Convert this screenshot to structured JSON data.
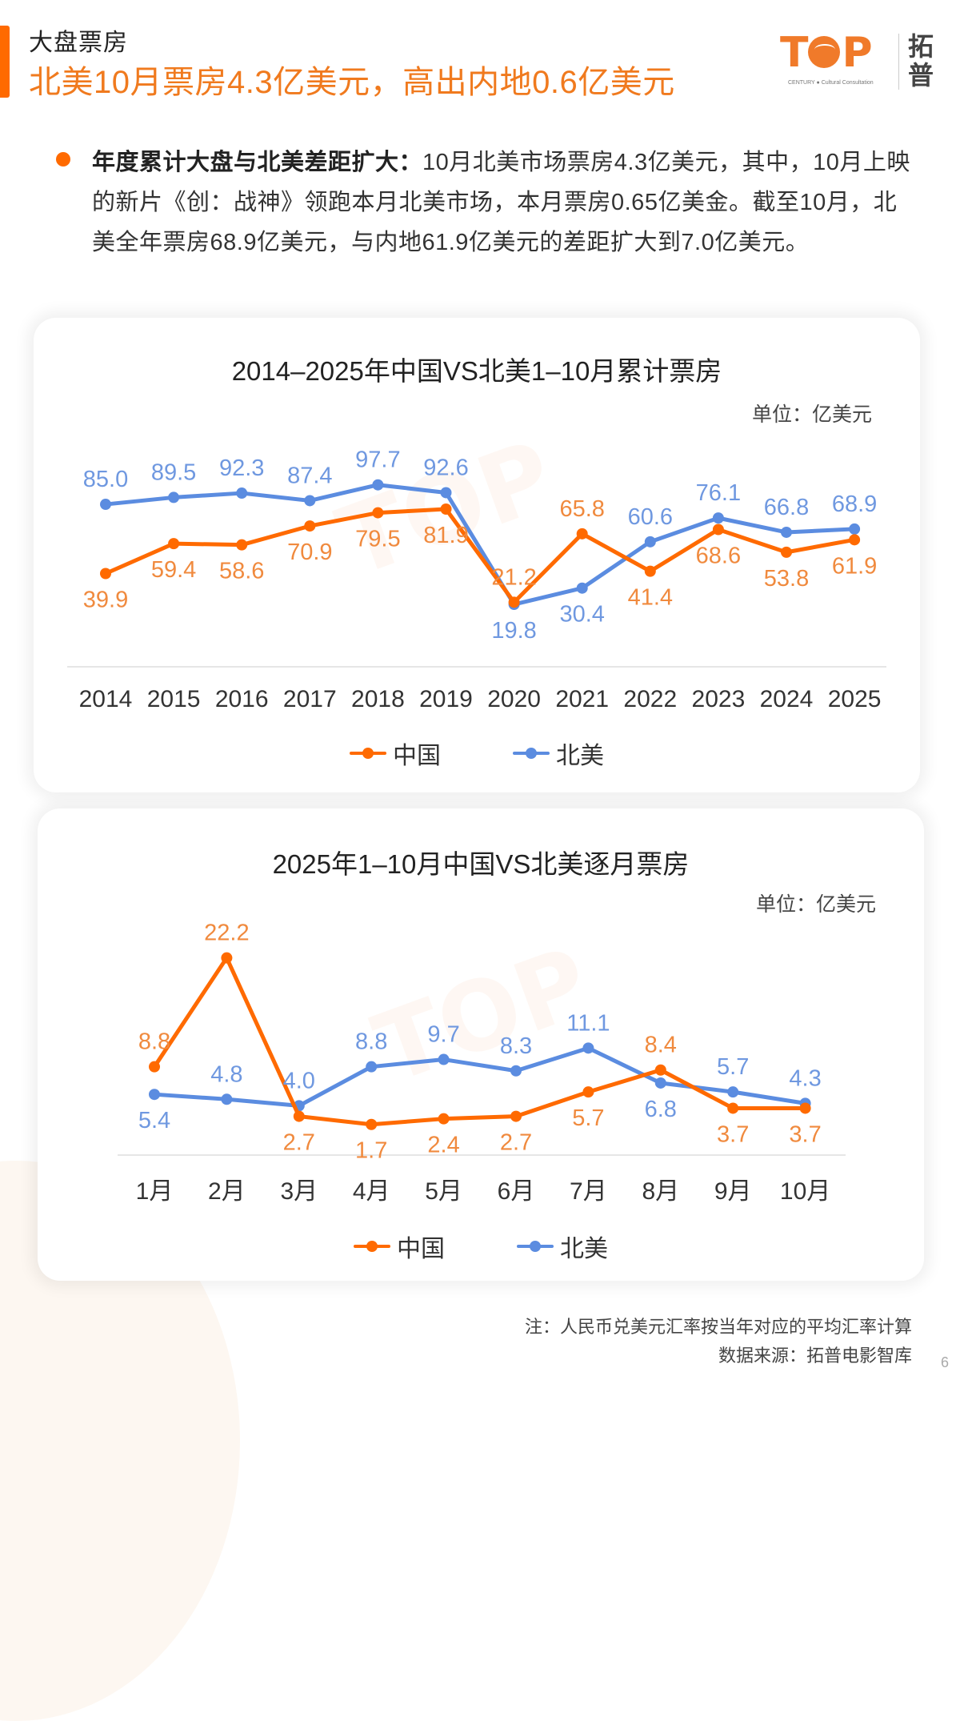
{
  "header": {
    "kicker": "大盘票房",
    "title": "北美10月票房4.3亿美元，高出内地0.6亿美元",
    "logo": {
      "mark_t": "T",
      "mark_p": "P",
      "subtitle": "CENTURY ● Cultural Consultation",
      "cn": "拓普"
    }
  },
  "summary": {
    "lead": "年度累计大盘与北美差距扩大：",
    "body": "10月北美市场票房4.3亿美元，其中，10月上映的新片《创：战神》领跑本月北美市场，本月票房0.65亿美金。截至10月，北美全年票房68.9亿美元，与内地61.9亿美元的差距扩大到7.0亿美元。"
  },
  "colors": {
    "china": "#ff6a00",
    "china_label": "#f08a3e",
    "north_america": "#5b8ce0",
    "north_america_label": "#6f98e0",
    "axis": "#e6e6e6"
  },
  "chart_data": [
    {
      "type": "line",
      "title": "2014–2025年中国VS北美1–10月累计票房",
      "unit_label": "单位：亿美元",
      "xlabel": "",
      "ylabel": "亿美元",
      "categories": [
        "2014",
        "2015",
        "2016",
        "2017",
        "2018",
        "2019",
        "2020",
        "2021",
        "2022",
        "2023",
        "2024",
        "2025"
      ],
      "series": [
        {
          "name": "中国",
          "key": "china",
          "values": [
            39.9,
            59.4,
            58.6,
            70.9,
            79.5,
            81.9,
            21.2,
            65.8,
            41.4,
            68.6,
            53.8,
            61.9
          ],
          "label_pos": [
            "below",
            "below",
            "below",
            "below",
            "below",
            "below",
            "above",
            "above",
            "below",
            "below",
            "below",
            "below"
          ]
        },
        {
          "name": "北美",
          "key": "north_america",
          "values": [
            85.0,
            89.5,
            92.3,
            87.4,
            97.7,
            92.6,
            19.8,
            30.4,
            60.6,
            76.1,
            66.8,
            68.9
          ],
          "label_pos": [
            "above",
            "above",
            "above",
            "above",
            "above",
            "above",
            "below",
            "below",
            "above",
            "above",
            "above",
            "above"
          ]
        }
      ],
      "legend": [
        "中国",
        "北美"
      ],
      "legend_position": "bottom",
      "grid": false
    },
    {
      "type": "line",
      "title": "2025年1–10月中国VS北美逐月票房",
      "unit_label": "单位：亿美元",
      "xlabel": "",
      "ylabel": "亿美元",
      "categories": [
        "1月",
        "2月",
        "3月",
        "4月",
        "5月",
        "6月",
        "7月",
        "8月",
        "9月",
        "10月"
      ],
      "series": [
        {
          "name": "中国",
          "key": "china",
          "values": [
            8.8,
            22.2,
            2.7,
            1.7,
            2.4,
            2.7,
            5.7,
            8.4,
            3.7,
            3.7
          ],
          "label_pos": [
            "above",
            "above",
            "below",
            "below",
            "below",
            "below",
            "below",
            "above",
            "below",
            "below"
          ]
        },
        {
          "name": "北美",
          "key": "north_america",
          "values": [
            5.4,
            4.8,
            4.0,
            8.8,
            9.7,
            8.3,
            11.1,
            6.8,
            5.7,
            4.3
          ],
          "label_pos": [
            "below",
            "above",
            "above",
            "above",
            "above",
            "above",
            "above",
            "below",
            "above",
            "above"
          ]
        }
      ],
      "legend": [
        "中国",
        "北美"
      ],
      "legend_position": "bottom",
      "grid": false
    }
  ],
  "footnotes": {
    "note": "注：人民币兑美元汇率按当年对应的平均汇率计算",
    "source": "数据来源：拓普电影智库"
  },
  "page_number": "6"
}
